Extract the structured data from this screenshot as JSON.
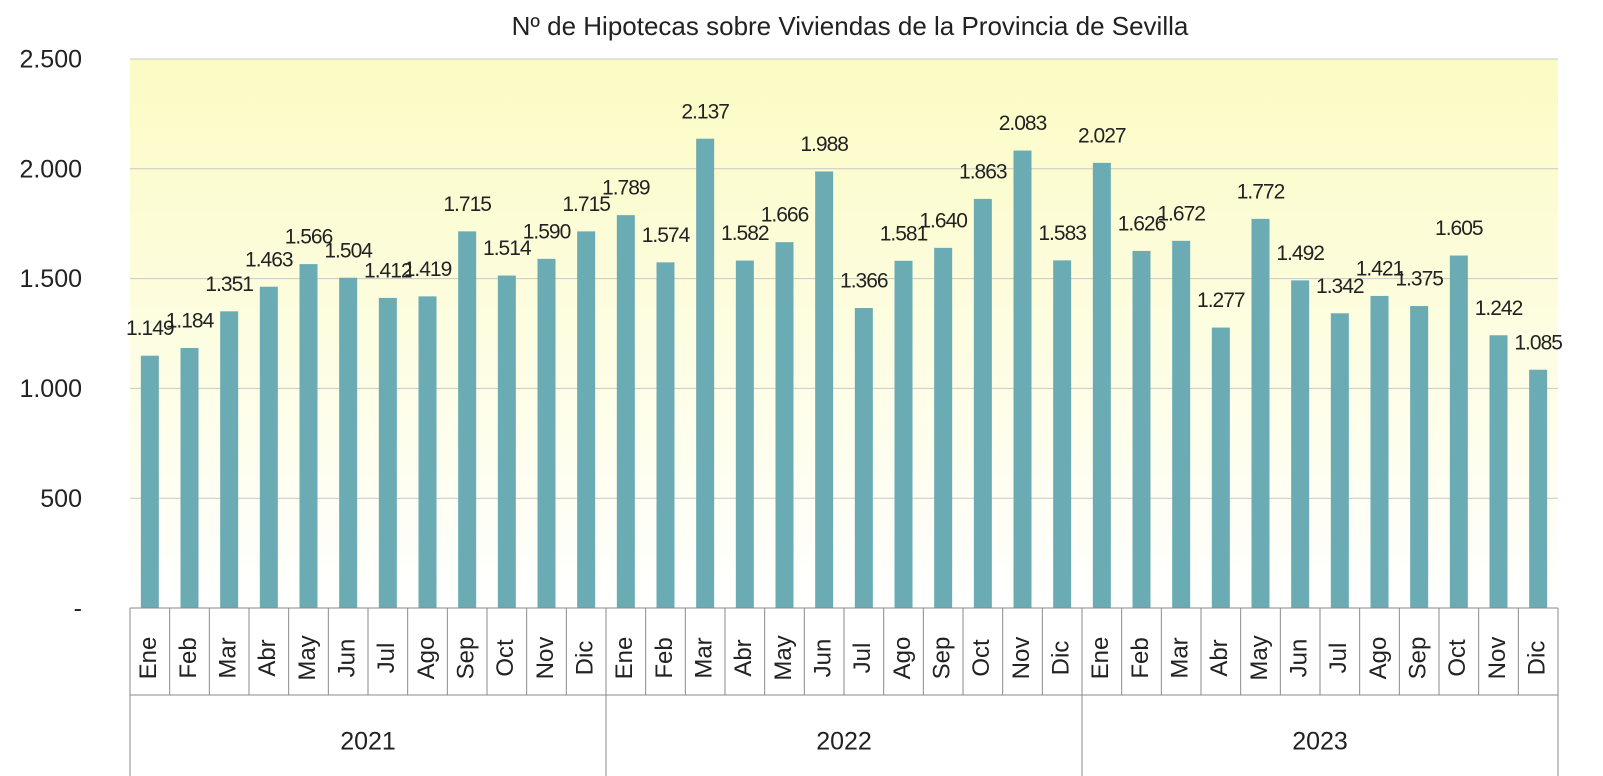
{
  "chart_data": {
    "type": "bar",
    "title": "Nº de Hipotecas sobre Viviendas de la Provincia de Sevilla",
    "categories": [
      "Ene",
      "Feb",
      "Mar",
      "Abr",
      "May",
      "Jun",
      "Jul",
      "Ago",
      "Sep",
      "Oct",
      "Nov",
      "Dic",
      "Ene",
      "Feb",
      "Mar",
      "Abr",
      "May",
      "Jun",
      "Jul",
      "Ago",
      "Sep",
      "Oct",
      "Nov",
      "Dic",
      "Ene",
      "Feb",
      "Mar",
      "Abr",
      "May",
      "Jun",
      "Jul",
      "Ago",
      "Sep",
      "Oct",
      "Nov",
      "Dic"
    ],
    "groups": [
      "2021",
      "2022",
      "2023"
    ],
    "values": [
      1149,
      1184,
      1351,
      1463,
      1566,
      1504,
      1412,
      1419,
      1715,
      1514,
      1590,
      1715,
      1789,
      1574,
      2137,
      1582,
      1666,
      1988,
      1366,
      1581,
      1640,
      1863,
      2083,
      1583,
      2027,
      1626,
      1672,
      1277,
      1772,
      1492,
      1342,
      1421,
      1375,
      1605,
      1242,
      1085
    ],
    "value_labels": [
      "1.149",
      "1.184",
      "1.351",
      "1.463",
      "1.566",
      "1.504",
      "1.412",
      "1.419",
      "1.715",
      "1.514",
      "1.590",
      "1.715",
      "1.789",
      "1.574",
      "2.137",
      "1.582",
      "1.666",
      "1.988",
      "1.366",
      "1.581",
      "1.640",
      "1.863",
      "2.083",
      "1.583",
      "2.027",
      "1.626",
      "1.672",
      "1.277",
      "1.772",
      "1.492",
      "1.342",
      "1.421",
      "1.375",
      "1.605",
      "1.242",
      "1.085"
    ],
    "color": "#6aabb4",
    "ylim": [
      0,
      2500
    ],
    "yticks": [
      {
        "value": 0,
        "label": "-"
      },
      500,
      {
        "value": 1000,
        "label": "1.000"
      },
      {
        "value": 1500,
        "label": "1.500"
      },
      {
        "value": 2000,
        "label": "2.000"
      },
      {
        "value": 2500,
        "label": "2.500"
      }
    ],
    "grid": true
  }
}
